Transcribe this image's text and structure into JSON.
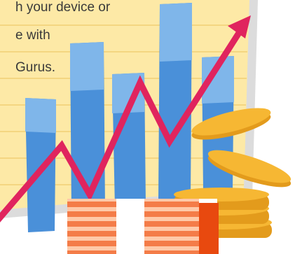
{
  "text_lines": [
    "h your device or",
    "e with",
    "Gurus."
  ],
  "illustration": {
    "description_icon": "rising-arrow-over-bars-and-coins",
    "colors": {
      "paper": "#fde9a6",
      "paper_line": "#f2cf75",
      "paper_shadow": "#d9d9d9",
      "bar_dark": "#4a90d9",
      "bar_light": "#7fb6ea",
      "arrow": "#e0245e",
      "coin": "#f6b733",
      "coin_edge": "#e39b1c",
      "stripe_orange": "#f47c48",
      "stripe_light": "#ffc9a8",
      "stripe_end": "#e8490f"
    }
  }
}
